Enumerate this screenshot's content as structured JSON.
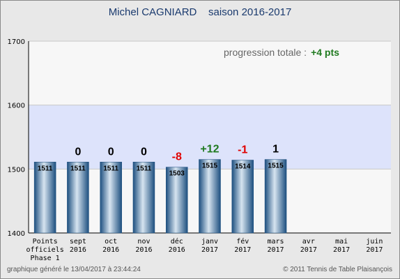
{
  "title": "Michel CAGNIARD    saison 2016-2017",
  "progression": {
    "label": "progression totale :",
    "value": "+4 pts"
  },
  "footer": {
    "left": "graphique généré le 13/04/2017 à 23:44:24",
    "right": "© 2011 Tennis de Table Plaisançois"
  },
  "colors": {
    "positive": "#1f7a1f",
    "negative": "#e00000",
    "neutral": "#000000",
    "band": "#dde3fb",
    "bar": "#3f78a8"
  },
  "chart_data": {
    "type": "bar",
    "ylim": [
      1400,
      1700
    ],
    "yticks": [
      "1400",
      "1500",
      "1600",
      "1700"
    ],
    "highlight_band": [
      1500,
      1600
    ],
    "categories": [
      "Points\nofficiels\nPhase 1",
      "sept\n2016",
      "oct\n2016",
      "nov\n2016",
      "déc\n2016",
      "janv\n2017",
      "fév\n2017",
      "mars\n2017",
      "avr\n2017",
      "mai\n2017",
      "juin\n2017"
    ],
    "values": [
      1511,
      1511,
      1511,
      1511,
      1503,
      1515,
      1514,
      1515,
      null,
      null,
      null
    ],
    "value_labels": [
      "1511",
      "1511",
      "1511",
      "1511",
      "1503",
      "1515",
      "1514",
      "1515",
      "",
      "",
      ""
    ],
    "deltas": [
      "",
      "0",
      "0",
      "0",
      "-8",
      "+12",
      "-1",
      "1",
      "",
      "",
      ""
    ]
  }
}
